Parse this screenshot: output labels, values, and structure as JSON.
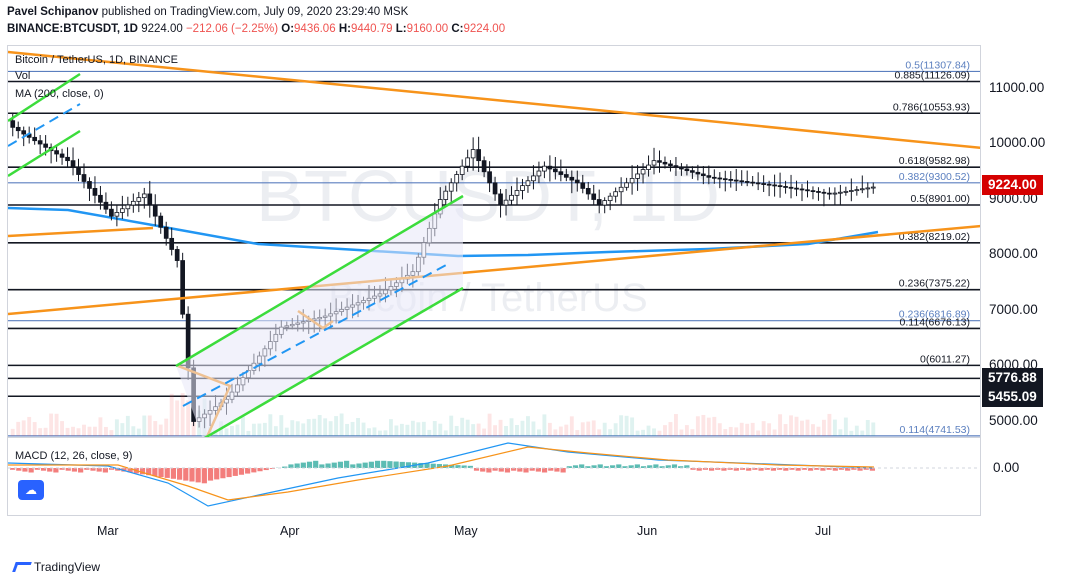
{
  "header": {
    "author": "Pavel Schipanov",
    "published": "published on TradingView.com, July 09, 2020 23:29:40 MSK",
    "symbol": "BINANCE:BTCUSDT, 1D",
    "last": "9224.00",
    "change": "−212.06 (−2.25%)",
    "open_label": "O:",
    "open": "9436.06",
    "high_label": "H:",
    "high": "9440.79",
    "low_label": "L:",
    "low": "9160.00",
    "close_label": "C:",
    "close": "9224.00"
  },
  "legend": {
    "title": "Bitcoin / TetherUS, 1D, BINANCE",
    "vol": "Vol",
    "ma": "MA (200, close, 0)",
    "macd": "MACD (12, 26, close, 9)"
  },
  "watermark": {
    "big": "BTCUSDT, 1D",
    "small": "Bitcoin / TetherUS"
  },
  "price_axis": {
    "ticks": [
      "11000.00",
      "10000.00",
      "9000.00",
      "8000.00",
      "7000.00",
      "6000.00",
      "5000.00"
    ],
    "current": "9224.00",
    "tag_mid": "5776.88",
    "tag_low": "5455.09",
    "macd_tick": "0.00"
  },
  "time_axis": [
    "Mar",
    "Apr",
    "May",
    "Jun",
    "Jul"
  ],
  "fib_labels": [
    "0.5(11307.84)",
    "0.885(11126.09)",
    "0.786(10553.93)",
    "0.618(9582.98)",
    "0.382(9300.52)",
    "0.5(8901.00)",
    "0.382(8219.02)",
    "0.236(7375.22)",
    "0.236(6816.89)",
    "0.114(6676.13)",
    "0(6011.27)",
    "0.114(4741.53)"
  ],
  "brand": "TradingView",
  "colors": {
    "up": "#26a69a",
    "down": "#ef5350",
    "ma": "#2196f3",
    "trend": "#f7931a",
    "channel": "#3cdc3c",
    "fib_blue": "#5b7fbf",
    "current_tag": "#d50000",
    "dark_tag": "#131722"
  }
}
